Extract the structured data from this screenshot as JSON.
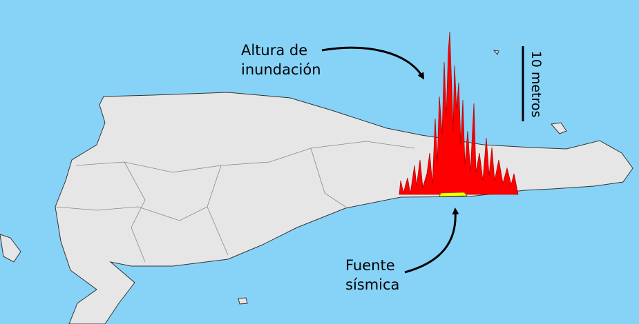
{
  "annotations": {
    "inundation": [
      "Altura de",
      "inundación"
    ],
    "scale": "10 metros",
    "source": [
      "Fuente",
      "sísmica"
    ]
  }
}
